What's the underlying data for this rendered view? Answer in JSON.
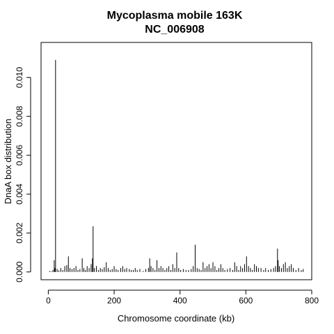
{
  "chart_data": {
    "type": "bar",
    "title": "Mycoplasma mobile 163K",
    "subtitle": "NC_006908",
    "xlabel": "Chromosome coordinate (kb)",
    "ylabel": "DnaA box distribution",
    "xlim": [
      -22,
      800
    ],
    "ylim": [
      -0.0004,
      0.0118
    ],
    "x_ticks": [
      0,
      200,
      400,
      600,
      800
    ],
    "x_tick_labels": [
      "0",
      "200",
      "400",
      "600",
      "800"
    ],
    "y_ticks": [
      0.0,
      0.002,
      0.004,
      0.006,
      0.008,
      0.01
    ],
    "y_tick_labels": [
      "0.000",
      "0.002",
      "0.004",
      "0.006",
      "0.008",
      "0.010"
    ],
    "grid": false,
    "color": "#000000",
    "x": [
      4,
      9,
      14,
      18,
      20,
      22,
      27,
      32,
      38,
      44,
      50,
      56,
      61,
      66,
      72,
      78,
      84,
      90,
      96,
      103,
      108,
      113,
      118,
      124,
      130,
      134,
      136,
      140,
      146,
      152,
      158,
      164,
      170,
      176,
      182,
      188,
      194,
      200,
      206,
      212,
      220,
      226,
      232,
      238,
      246,
      252,
      258,
      264,
      270,
      278,
      288,
      296,
      304,
      308,
      312,
      318,
      324,
      330,
      336,
      342,
      348,
      354,
      360,
      366,
      372,
      378,
      384,
      390,
      396,
      402,
      410,
      418,
      426,
      434,
      440,
      446,
      452,
      458,
      464,
      470,
      476,
      482,
      488,
      494,
      500,
      506,
      512,
      518,
      524,
      530,
      536,
      544,
      552,
      560,
      566,
      572,
      578,
      584,
      590,
      596,
      602,
      608,
      614,
      620,
      626,
      632,
      638,
      646,
      654,
      660,
      668,
      676,
      684,
      690,
      696,
      698,
      702,
      708,
      714,
      720,
      726,
      732,
      738,
      744,
      752,
      760,
      768,
      774
    ],
    "values": [
      5e-05,
      3e-05,
      0.0001,
      0.0006,
      0.0002,
      0.0109,
      0.00015,
      8e-05,
      0.0002,
      0.0001,
      0.0003,
      0.00035,
      0.0008,
      0.0002,
      0.00015,
      0.0002,
      0.0003,
      0.0001,
      0.00015,
      0.0007,
      0.0002,
      0.0001,
      0.0003,
      0.0002,
      0.0004,
      0.0007,
      0.00235,
      0.0002,
      0.0003,
      0.0001,
      0.0002,
      0.00015,
      0.00025,
      0.0005,
      0.0002,
      0.0001,
      0.00015,
      0.0003,
      0.00015,
      0.0001,
      0.0002,
      0.0003,
      0.00015,
      0.0002,
      0.00015,
      0.0001,
      0.0001,
      0.0002,
      0.0001,
      0.00015,
      5e-05,
      0.00015,
      0.0002,
      0.0007,
      0.0003,
      0.0002,
      0.0001,
      0.0006,
      0.0002,
      0.0003,
      0.0002,
      0.0001,
      0.0002,
      0.0003,
      0.0001,
      0.0004,
      0.0002,
      0.001,
      0.0002,
      0.0001,
      0.00015,
      0.0001,
      0.0001,
      0.00015,
      0.0003,
      0.0014,
      0.0002,
      0.00015,
      0.0001,
      0.0005,
      0.0002,
      0.0003,
      0.0004,
      0.0002,
      0.0005,
      0.0003,
      0.0001,
      0.0002,
      0.0004,
      0.0002,
      0.0001,
      0.00015,
      0.0002,
      0.0001,
      0.0005,
      0.0003,
      0.0001,
      0.0003,
      0.0002,
      0.0004,
      0.0008,
      0.0003,
      0.0002,
      0.0001,
      0.0004,
      0.0003,
      0.0002,
      0.0002,
      0.0001,
      0.0002,
      0.0001,
      0.00015,
      0.0002,
      0.0003,
      0.0012,
      0.0006,
      0.0003,
      0.0002,
      0.0004,
      0.0005,
      0.0002,
      0.0003,
      0.0004,
      0.0002,
      0.0001,
      0.0002,
      0.0001,
      0.00015
    ]
  }
}
